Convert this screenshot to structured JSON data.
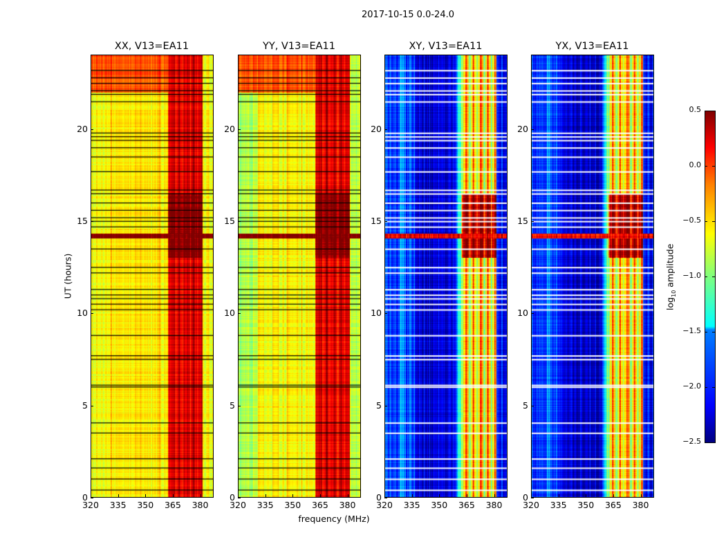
{
  "chart_data": {
    "type": "heatmap",
    "suptitle": "2017-10-15 0.0-24.0",
    "xlabel": "frequency (MHz)",
    "ylabel": "UT (hours)",
    "xlim": [
      320,
      387
    ],
    "ylim": [
      0,
      24
    ],
    "xticks": [
      "320",
      "335",
      "350",
      "365",
      "380"
    ],
    "yticks": [
      "0",
      "5",
      "10",
      "15",
      "20"
    ],
    "colorbar": {
      "label_prefix": "log",
      "label_sub": "10",
      "label_suffix": " amplitude",
      "range": [
        -2.5,
        0.5
      ],
      "ticks": [
        "0.5",
        "0.0",
        "−0.5",
        "−1.0",
        "−1.5",
        "−2.0",
        "−2.5"
      ],
      "colormap": "jet"
    },
    "panels": [
      {
        "title": "XX, V13=EA11",
        "low_band": -0.6,
        "low_band_left": -0.7,
        "high_band_range_mhz": [
          362,
          381
        ],
        "high_band": 0.15,
        "burst_hours": [
          13,
          16.5
        ],
        "burst_value": 0.45,
        "top_hours_value": -0.15,
        "edge_value": -0.7,
        "flag_color": "#000000"
      },
      {
        "title": "YY, V13=EA11",
        "low_band": -0.65,
        "low_band_left": -0.9,
        "high_band_range_mhz": [
          362,
          381
        ],
        "high_band": 0.15,
        "burst_hours": [
          13,
          16.5
        ],
        "burst_value": 0.45,
        "top_hours_value": -0.15,
        "edge_value": -0.85,
        "flag_color": "#000000"
      },
      {
        "title": "XY, V13=EA11",
        "low_band": -2.3,
        "low_band_left": -2.0,
        "high_band_range_mhz": [
          362,
          381
        ],
        "high_band": -0.6,
        "burst_hours": [
          13,
          16.5
        ],
        "burst_value": 0.3,
        "top_hours_value": -2.1,
        "edge_value": -2.2,
        "flag_color": "#ffffff"
      },
      {
        "title": "YX, V13=EA11",
        "low_band": -2.3,
        "low_band_left": -2.0,
        "high_band_range_mhz": [
          362,
          381
        ],
        "high_band": -0.6,
        "burst_hours": [
          13,
          16.5
        ],
        "burst_value": 0.3,
        "top_hours_value": -2.1,
        "edge_value": -2.2,
        "flag_color": "#ffffff"
      }
    ],
    "flagged_rows_hours": [
      0.4,
      1.0,
      1.6,
      2.1,
      3.5,
      4.05,
      6.0,
      6.1,
      7.5,
      7.7,
      8.8,
      10.2,
      10.5,
      10.8,
      11.0,
      11.3,
      12.2,
      12.5,
      13.5,
      14.7,
      15.0,
      15.2,
      15.6,
      16.0,
      16.5,
      16.7,
      17.7,
      18.5,
      19.0,
      19.4,
      19.6,
      19.8,
      21.5,
      21.9,
      22.1,
      22.5,
      22.8,
      23.2
    ],
    "bright_row_hour": 14.2
  }
}
